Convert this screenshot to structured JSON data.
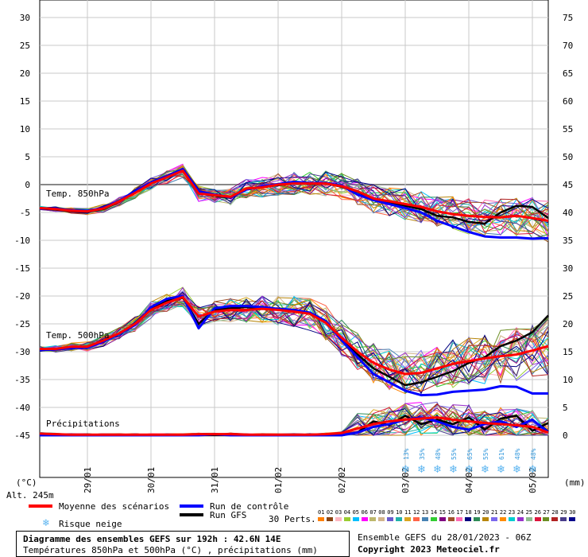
{
  "chart_data": {
    "type": "line",
    "y_left_ticks": [
      "30",
      "25",
      "20",
      "15",
      "10",
      "5",
      "0",
      "-5",
      "-10",
      "-15",
      "-20",
      "-25",
      "-30",
      "-35",
      "-40",
      "-45"
    ],
    "y_right_ticks": [
      "75",
      "70",
      "65",
      "60",
      "55",
      "50",
      "45",
      "40",
      "35",
      "30",
      "25",
      "20",
      "15",
      "10",
      "5",
      "0"
    ],
    "y_left_unit": "(°C)",
    "y_right_unit": "(mm)",
    "altitude": "Alt. 245m",
    "x_ticks": [
      "29/01",
      "30/01",
      "31/01",
      "01/02",
      "02/02",
      "03/02",
      "04/02",
      "05/02"
    ],
    "panel_labels": {
      "t850": "Temp. 850hPa",
      "t500": "Temp. 500hPa",
      "precip": "Précipitations"
    },
    "snow_risk": [
      "13%",
      "35%",
      "48%",
      "55%",
      "65%",
      "55%",
      "61%",
      "48%",
      "48%"
    ],
    "series": [
      {
        "name": "Moyenne des scénarios",
        "group": "t850",
        "color": "#ff0000",
        "values": [
          -4.2,
          -4.4,
          -4.7,
          -4.8,
          -4.3,
          -3.0,
          -1.5,
          0.2,
          1.3,
          2.5,
          -1.6,
          -1.9,
          -2.2,
          -0.7,
          -0.5,
          0.0,
          0.2,
          0.2,
          0.2,
          -0.3,
          -1.2,
          -2.5,
          -3.0,
          -3.5,
          -4.0,
          -4.8,
          -5.3,
          -5.6,
          -5.8,
          -5.9,
          -5.6,
          -6.0,
          -6.5
        ]
      },
      {
        "name": "Run de contrôle",
        "group": "t850",
        "color": "#0000ff",
        "values": [
          -4.3,
          -4.3,
          -4.6,
          -4.7,
          -4.2,
          -2.9,
          -1.2,
          0.4,
          1.5,
          2.8,
          -1.2,
          -1.8,
          -2.3,
          -0.9,
          -0.3,
          0.1,
          0.5,
          0.3,
          0.3,
          -0.2,
          -1.8,
          -2.8,
          -3.5,
          -4.2,
          -5.0,
          -6.5,
          -7.5,
          -8.5,
          -9.3,
          -9.5,
          -9.5,
          -9.7,
          -9.6
        ]
      },
      {
        "name": "Run GFS",
        "group": "t850",
        "color": "#000000",
        "values": [
          -4.3,
          -4.5,
          -4.8,
          -4.9,
          -4.4,
          -3.1,
          -1.3,
          0.3,
          1.4,
          2.7,
          -1.4,
          -2.0,
          -2.4,
          -0.8,
          -0.4,
          -0.1,
          0.3,
          0.1,
          0.2,
          -0.4,
          -1.3,
          -2.6,
          -3.2,
          -3.8,
          -4.4,
          -5.6,
          -5.9,
          -6.7,
          -7.0,
          -5.0,
          -3.8,
          -4.0,
          -6.0
        ]
      },
      {
        "name": "Moyenne des scénarios",
        "group": "t500",
        "color": "#ff0000",
        "values": [
          -29.5,
          -29.5,
          -29.1,
          -29.1,
          -28.0,
          -26.7,
          -25.0,
          -22.5,
          -21.2,
          -20.2,
          -23.7,
          -22.8,
          -22.5,
          -22.5,
          -22.3,
          -22.5,
          -22.8,
          -23.2,
          -24.8,
          -27.5,
          -30.0,
          -32.0,
          -33.2,
          -34.0,
          -33.8,
          -33.0,
          -32.2,
          -31.7,
          -31.2,
          -30.8,
          -30.5,
          -29.8,
          -29.0
        ]
      },
      {
        "name": "Run de contrôle",
        "group": "t500",
        "color": "#0000ff",
        "values": [
          -29.7,
          -29.6,
          -29.3,
          -29.3,
          -28.2,
          -26.8,
          -25.2,
          -22.0,
          -20.5,
          -20.0,
          -25.8,
          -22.2,
          -21.8,
          -21.8,
          -22.0,
          -22.3,
          -22.5,
          -23.0,
          -24.5,
          -28.0,
          -31.0,
          -34.0,
          -35.5,
          -37.0,
          -37.8,
          -37.7,
          -37.2,
          -37.0,
          -36.8,
          -36.2,
          -36.3,
          -37.5,
          -37.5
        ]
      },
      {
        "name": "Run GFS",
        "group": "t500",
        "color": "#000000",
        "values": [
          -29.6,
          -29.6,
          -29.2,
          -29.2,
          -28.1,
          -26.7,
          -25.1,
          -22.2,
          -20.8,
          -20.3,
          -25.0,
          -22.5,
          -22.2,
          -22.0,
          -22.2,
          -22.4,
          -22.6,
          -23.2,
          -24.6,
          -27.8,
          -30.5,
          -33.0,
          -34.5,
          -36.0,
          -35.5,
          -34.5,
          -33.5,
          -32.0,
          -31.0,
          -29.0,
          -28.0,
          -26.5,
          -23.5
        ]
      },
      {
        "name": "Moyenne des scénarios",
        "group": "precip",
        "color": "#ff0000",
        "values": [
          0.3,
          0.2,
          0.1,
          0.1,
          0.1,
          0.1,
          0.1,
          0.1,
          0.1,
          0.1,
          0.2,
          0.2,
          0.2,
          0.1,
          0.1,
          0.1,
          0.1,
          0.1,
          0.2,
          0.4,
          1.2,
          2.0,
          2.5,
          2.8,
          3.0,
          3.2,
          2.8,
          2.5,
          2.2,
          2.0,
          1.8,
          1.5,
          0.5
        ]
      },
      {
        "name": "Run de contrôle",
        "group": "precip",
        "color": "#0000ff",
        "values": [
          0.0,
          0.0,
          0.0,
          0.0,
          0.0,
          0.0,
          0.0,
          0.0,
          0.0,
          0.0,
          0.0,
          0.2,
          0.0,
          0.0,
          0.0,
          0.0,
          0.0,
          0.0,
          0.0,
          0.0,
          0.5,
          1.5,
          2.0,
          2.8,
          3.2,
          2.5,
          1.5,
          1.0,
          2.0,
          2.5,
          1.5,
          2.8,
          0.5
        ]
      },
      {
        "name": "Run GFS",
        "group": "precip",
        "color": "#000000",
        "values": [
          0.0,
          0.0,
          0.0,
          0.0,
          0.0,
          0.0,
          0.0,
          0.0,
          0.0,
          0.0,
          0.0,
          0.0,
          0.0,
          0.0,
          0.0,
          0.0,
          0.0,
          0.0,
          0.0,
          0.0,
          0.5,
          2.5,
          1.8,
          3.5,
          2.0,
          2.8,
          2.0,
          3.2,
          1.0,
          3.0,
          3.5,
          0.8,
          2.2
        ]
      }
    ]
  },
  "legend": {
    "mean": "Moyenne des scénarios",
    "control": "Run de contrôle",
    "gfs": "Run GFS",
    "snow": "Risque neige",
    "perts_label": "30 Perts.",
    "perts": [
      "01",
      "02",
      "03",
      "04",
      "05",
      "06",
      "07",
      "08",
      "09",
      "10",
      "11",
      "12",
      "13",
      "14",
      "15",
      "16",
      "17",
      "18",
      "19",
      "20",
      "21",
      "22",
      "23",
      "24",
      "25",
      "26",
      "27",
      "28",
      "29",
      "30"
    ],
    "pert_colors": [
      "#ff7f00",
      "#8b4513",
      "#ffb6c1",
      "#9acd32",
      "#00bfff",
      "#ff00ff",
      "#bdb76b",
      "#d2b48c",
      "#6a5acd",
      "#20b2aa",
      "#daa520",
      "#ff6347",
      "#4682b4",
      "#32cd32",
      "#800080",
      "#a0522d",
      "#ff69b4",
      "#000080",
      "#2e8b57",
      "#b8860b",
      "#7b68ee",
      "#ff8c00",
      "#00ced1",
      "#9932cc",
      "#8fbc8f",
      "#dc143c",
      "#6b8e23",
      "#b22222",
      "#483d8b",
      "#00008b"
    ]
  },
  "info": {
    "title": "Diagramme des ensembles GEFS sur 192h : 42.6N 14E",
    "subtitle": "Températures 850hPa et 500hPa (°C) , précipitations (mm)",
    "run": "Ensemble GEFS du 28/01/2023 - 06Z",
    "copyright": "Copyright 2023 Meteociel.fr"
  }
}
